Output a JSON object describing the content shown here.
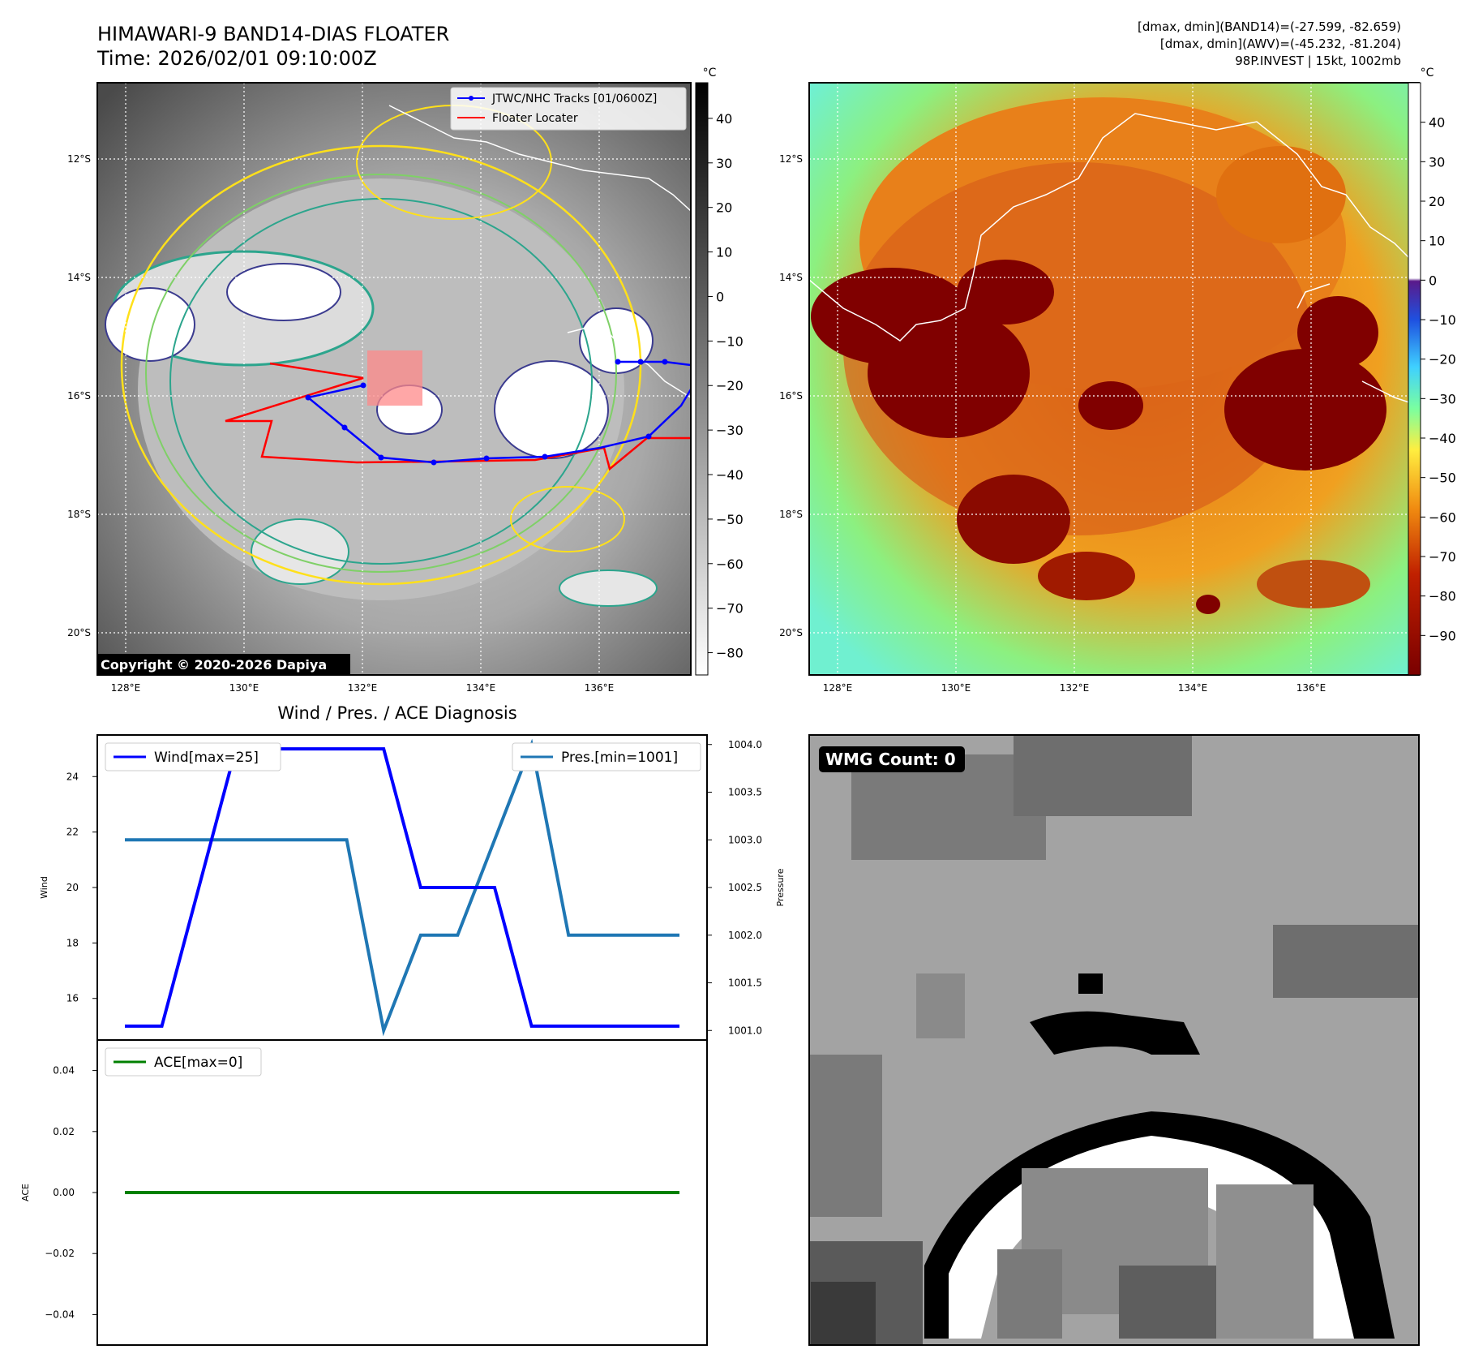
{
  "header": {
    "title": "HIMAWARI-9 BAND14-DIAS FLOATER",
    "time": "Time: 2026/02/01 09:10:00Z",
    "info_line1": "[dmax, dmin](BAND14)=(-27.599, -82.659)",
    "info_line2": "[dmax, dmin](AWV)=(-45.232, -81.204)",
    "info_line3": "98P.INVEST | 15kt, 1002mb"
  },
  "copyright": "Copyright © 2020-2026 Dapiya",
  "map_axes": {
    "lat_labels": [
      "12°S",
      "14°S",
      "16°S",
      "18°S",
      "20°S"
    ],
    "lon_labels": [
      "128°E",
      "130°E",
      "132°E",
      "134°E",
      "136°E"
    ]
  },
  "legend": {
    "tracks": "JTWC/NHC Tracks [01/0600Z]",
    "locater": "Floater Locater"
  },
  "colorbar1": {
    "unit": "°C",
    "ticks": [
      "40",
      "30",
      "20",
      "10",
      "0",
      "−10",
      "−20",
      "−30",
      "−40",
      "−50",
      "−60",
      "−70",
      "−80"
    ]
  },
  "colorbar2": {
    "unit": "°C",
    "ticks": [
      "40",
      "30",
      "20",
      "10",
      "0",
      "−10",
      "−20",
      "−30",
      "−40",
      "−50",
      "−60",
      "−70",
      "−80",
      "−90"
    ]
  },
  "diag": {
    "title": "Wind / Pres. / ACE Diagnosis",
    "wind_label": "Wind",
    "pressure_label": "Pressure",
    "ace_label": "ACE",
    "wind_legend": "Wind[max=25]",
    "pres_legend": "Pres.[min=1001]",
    "ace_legend": "ACE[max=0]",
    "wind_ticks": [
      "24",
      "22",
      "20",
      "18",
      "16"
    ],
    "pres_ticks": [
      "1004.0",
      "1003.5",
      "1003.0",
      "1002.5",
      "1002.0",
      "1001.5",
      "1001.0"
    ],
    "ace_ticks": [
      "0.04",
      "0.02",
      "0.00",
      "−0.02",
      "−0.04"
    ]
  },
  "wmg": {
    "label": "WMG Count: 0"
  },
  "colors": {
    "wind": "#0000ff",
    "pressure": "#1f77b4",
    "ace": "#008000",
    "track": "#0000ff",
    "locater": "#ff0000"
  },
  "chart_data": [
    {
      "type": "line",
      "title": "Wind / Pres. / ACE Diagnosis",
      "xlabel": "",
      "series": [
        {
          "name": "Wind[max=25]",
          "axis": "left",
          "ylabel": "Wind",
          "values": [
            15,
            15,
            20,
            25,
            25,
            25,
            25,
            25,
            20,
            20,
            20,
            15,
            15,
            15,
            15,
            15
          ]
        },
        {
          "name": "Pres.[min=1001]",
          "axis": "right",
          "ylabel": "Pressure",
          "values": [
            1003,
            1003,
            1003,
            1003,
            1003,
            1003,
            1003,
            1001,
            1002,
            1002,
            1003,
            1004,
            1002,
            1002,
            1002,
            1002
          ]
        }
      ],
      "ylim_left": [
        14.5,
        25.5
      ],
      "ylim_right": [
        1000.9,
        1004.1
      ]
    },
    {
      "type": "line",
      "ylabel": "ACE",
      "series": [
        {
          "name": "ACE[max=0]",
          "values": [
            0,
            0,
            0,
            0,
            0,
            0,
            0,
            0,
            0,
            0,
            0,
            0,
            0,
            0,
            0,
            0
          ]
        }
      ],
      "ylim": [
        -0.05,
        0.05
      ]
    }
  ]
}
